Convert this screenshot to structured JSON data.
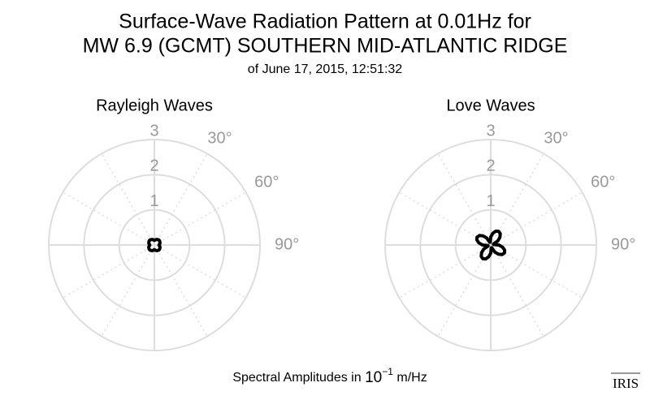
{
  "title": [
    "Surface-Wave Radiation Pattern at 0.01Hz for",
    "MW 6.9 (GCMT) SOUTHERN MID-ATLANTIC RIDGE"
  ],
  "subtitle": "of June 17, 2015, 12:51:32",
  "xlabel": [
    "Spectral Amplitudes in",
    "10",
    "−1",
    "m/Hz"
  ],
  "logo": "IRIS",
  "chart_data": [
    {
      "type": "polar",
      "title": "Rayleigh Waves",
      "rlim": [
        0,
        3
      ],
      "rticks": [
        1,
        2,
        3
      ],
      "thetaticks": [
        {
          "value": 0,
          "label": null
        },
        {
          "value": 30,
          "label": "30°"
        },
        {
          "value": 60,
          "label": "60°"
        },
        {
          "value": 90,
          "label": "90°"
        },
        {
          "value": 120,
          "label": null
        },
        {
          "value": 150,
          "label": null
        },
        {
          "value": 180,
          "label": null
        },
        {
          "value": 210,
          "label": null
        },
        {
          "value": 240,
          "label": null
        },
        {
          "value": 270,
          "label": null
        },
        {
          "value": 300,
          "label": null
        },
        {
          "value": 330,
          "label": null
        }
      ],
      "color": "#000000",
      "theta": [
        0,
        10,
        20,
        30,
        40,
        50,
        60,
        70,
        80,
        90,
        100,
        110,
        120,
        130,
        140,
        150,
        160,
        170,
        180,
        190,
        200,
        210,
        220,
        230,
        240,
        250,
        260,
        270,
        280,
        290,
        300,
        310,
        320,
        330,
        340,
        350
      ],
      "r": [
        0.13,
        0.15,
        0.17,
        0.18,
        0.19,
        0.19,
        0.18,
        0.17,
        0.15,
        0.13,
        0.15,
        0.17,
        0.18,
        0.19,
        0.19,
        0.18,
        0.17,
        0.15,
        0.13,
        0.15,
        0.17,
        0.18,
        0.19,
        0.19,
        0.18,
        0.17,
        0.15,
        0.13,
        0.15,
        0.17,
        0.18,
        0.19,
        0.19,
        0.18,
        0.17,
        0.15
      ]
    },
    {
      "type": "polar",
      "title": "Love Waves",
      "rlim": [
        0,
        3
      ],
      "rticks": [
        1,
        2,
        3
      ],
      "thetaticks": [
        {
          "value": 0,
          "label": null
        },
        {
          "value": 30,
          "label": "30°"
        },
        {
          "value": 60,
          "label": "60°"
        },
        {
          "value": 90,
          "label": "90°"
        },
        {
          "value": 120,
          "label": null
        },
        {
          "value": 150,
          "label": null
        },
        {
          "value": 180,
          "label": null
        },
        {
          "value": 210,
          "label": null
        },
        {
          "value": 240,
          "label": null
        },
        {
          "value": 270,
          "label": null
        },
        {
          "value": 300,
          "label": null
        },
        {
          "value": 330,
          "label": null
        }
      ],
      "color": "#000000",
      "theta": [
        0,
        10,
        20,
        30,
        40,
        50,
        60,
        70,
        80,
        90,
        100,
        110,
        120,
        130,
        140,
        150,
        160,
        170,
        180,
        190,
        200,
        210,
        220,
        230,
        240,
        250,
        260,
        270,
        280,
        290,
        300,
        310,
        320,
        330,
        340,
        350
      ],
      "r": [
        0.23,
        0.34,
        0.42,
        0.45,
        0.42,
        0.34,
        0.23,
        0.08,
        0.08,
        0.23,
        0.34,
        0.42,
        0.45,
        0.42,
        0.34,
        0.23,
        0.08,
        0.08,
        0.23,
        0.34,
        0.42,
        0.45,
        0.42,
        0.34,
        0.23,
        0.08,
        0.08,
        0.23,
        0.34,
        0.42,
        0.45,
        0.42,
        0.34,
        0.23,
        0.08,
        0.08
      ]
    }
  ]
}
